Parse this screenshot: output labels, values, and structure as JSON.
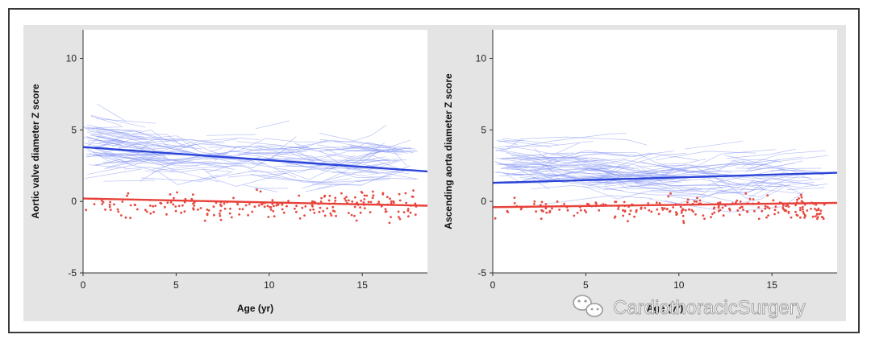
{
  "watermark": {
    "text": "CardiothoracicSurgery",
    "icon": "wechat-icon"
  },
  "chart_data": [
    {
      "type": "line",
      "ylabel": "Aortic valve diameter Z score",
      "xlabel": "Age (yr)",
      "xlim": [
        0,
        18.5
      ],
      "ylim": [
        -5,
        12
      ],
      "xticks": [
        0,
        5,
        10,
        15
      ],
      "yticks": [
        -5,
        0,
        5,
        10
      ],
      "series": [
        {
          "role": "fitted-trend-upper",
          "color": "#2a44d8",
          "points": [
            [
              0,
              3.8
            ],
            [
              18.5,
              2.1
            ]
          ]
        },
        {
          "role": "fitted-trend-lower",
          "color": "#e8413a",
          "points": [
            [
              0,
              0.2
            ],
            [
              18.5,
              -0.3
            ]
          ]
        }
      ],
      "individual_trajectories": {
        "color": "#7f8ff2",
        "y_center": 2.8,
        "y_spread": 1.9
      },
      "scatter_points": {
        "color": "#e44a40",
        "y_center": -0.3,
        "y_spread": 0.9
      }
    },
    {
      "type": "line",
      "ylabel": "Ascending aorta diameter Z score",
      "xlabel": "Age (yr)",
      "xlim": [
        0,
        18.5
      ],
      "ylim": [
        -5,
        12
      ],
      "xticks": [
        0,
        5,
        10,
        15
      ],
      "yticks": [
        -5,
        0,
        5,
        10
      ],
      "series": [
        {
          "role": "fitted-trend-upper",
          "color": "#2a44d8",
          "points": [
            [
              0,
              1.3
            ],
            [
              18.5,
              2.0
            ]
          ]
        },
        {
          "role": "fitted-trend-lower",
          "color": "#e8413a",
          "points": [
            [
              0,
              -0.4
            ],
            [
              18.5,
              -0.1
            ]
          ]
        }
      ],
      "individual_trajectories": {
        "color": "#7f8ff2",
        "y_center": 1.9,
        "y_spread": 1.5
      },
      "scatter_points": {
        "color": "#e44a40",
        "y_center": -0.5,
        "y_spread": 0.8
      }
    }
  ]
}
